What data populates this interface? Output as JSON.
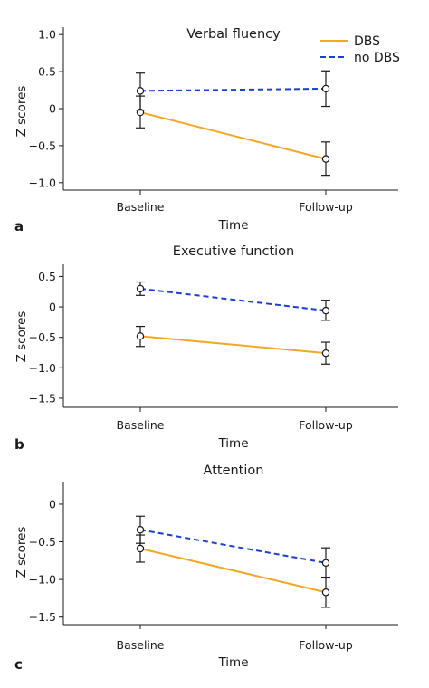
{
  "legend": {
    "position": "top-right",
    "entries": [
      {
        "label": "DBS",
        "color": "#f5a623",
        "dash": false
      },
      {
        "label": "no DBS",
        "color": "#1c3fd1",
        "dash": true
      }
    ]
  },
  "chart_data": [
    {
      "type": "line",
      "panel": "a",
      "title": "Verbal fluency",
      "xlabel": "Time",
      "ylabel": "Z scores",
      "categories": [
        "Baseline",
        "Follow-up"
      ],
      "ylim": [
        -1.1,
        1.1
      ],
      "yticks": [
        1.0,
        0.5,
        0,
        -0.5,
        -1.0
      ],
      "ytick_labels": [
        "1.0",
        "0.5",
        "0",
        "−0.5",
        "−1.0"
      ],
      "grid": false,
      "series": [
        {
          "name": "DBS",
          "values": [
            -0.05,
            -0.68
          ],
          "err_low": [
            -0.26,
            -0.9
          ],
          "err_high": [
            0.17,
            -0.45
          ]
        },
        {
          "name": "no DBS",
          "values": [
            0.24,
            0.27
          ],
          "err_low": [
            -0.02,
            0.03
          ],
          "err_high": [
            0.48,
            0.51
          ]
        }
      ]
    },
    {
      "type": "line",
      "panel": "b",
      "title": "Executive function",
      "xlabel": "Time",
      "ylabel": "Z scores",
      "categories": [
        "Baseline",
        "Follow-up"
      ],
      "ylim": [
        -1.65,
        0.7
      ],
      "yticks": [
        0.5,
        0,
        -0.5,
        -1.0,
        -1.5
      ],
      "ytick_labels": [
        "0.5",
        "0",
        "−0.5",
        "−1.0",
        "−1.5"
      ],
      "grid": false,
      "series": [
        {
          "name": "DBS",
          "values": [
            -0.48,
            -0.76
          ],
          "err_low": [
            -0.65,
            -0.94
          ],
          "err_high": [
            -0.32,
            -0.58
          ]
        },
        {
          "name": "no DBS",
          "values": [
            0.3,
            -0.06
          ],
          "err_low": [
            0.19,
            -0.22
          ],
          "err_high": [
            0.41,
            0.11
          ]
        }
      ]
    },
    {
      "type": "line",
      "panel": "c",
      "title": "Attention",
      "xlabel": "Time",
      "ylabel": "Z scores",
      "categories": [
        "Baseline",
        "Follow-up"
      ],
      "ylim": [
        -1.6,
        0.3
      ],
      "yticks": [
        0,
        -0.5,
        -1.0,
        -1.5
      ],
      "ytick_labels": [
        "0",
        "−0.5",
        "−1.0",
        "−1.5"
      ],
      "grid": false,
      "series": [
        {
          "name": "DBS",
          "values": [
            -0.59,
            -1.17
          ],
          "err_low": [
            -0.77,
            -1.37
          ],
          "err_high": [
            -0.41,
            -0.97
          ]
        },
        {
          "name": "no DBS",
          "values": [
            -0.34,
            -0.78
          ],
          "err_low": [
            -0.52,
            -0.98
          ],
          "err_high": [
            -0.16,
            -0.58
          ]
        }
      ]
    }
  ]
}
